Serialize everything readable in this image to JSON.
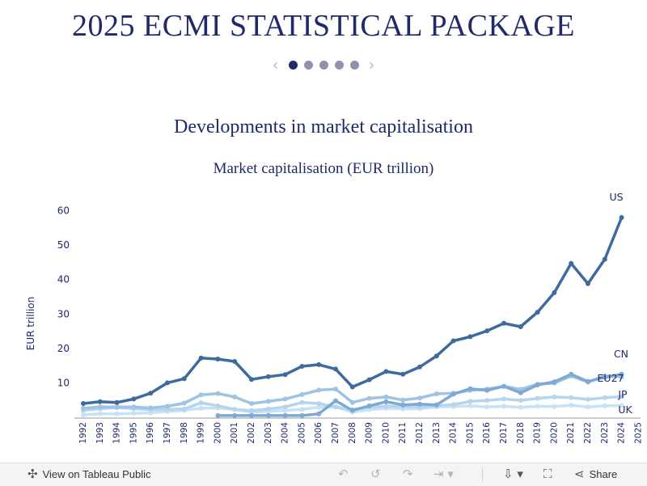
{
  "page": {
    "title": "2025 ECMI STATISTICAL PACKAGE",
    "subtitle": "Developments in market capitalisation"
  },
  "pager": {
    "prev_icon": "chevron-left-icon",
    "next_icon": "chevron-right-icon",
    "dots": 5,
    "active": 0
  },
  "toolbar": {
    "view_label": "View on Tableau Public",
    "share_label": "Share",
    "icons": [
      "tableau-logo-icon",
      "undo-icon",
      "revert-icon",
      "redo-icon",
      "download-icon",
      "fullscreen-icon",
      "share-icon"
    ]
  },
  "chart_data": {
    "type": "line",
    "title": "Market capitalisation (EUR trillion)",
    "ylabel": "EUR trillion",
    "xlabel": "",
    "ylim": [
      0,
      62
    ],
    "yticks": [
      10,
      20,
      30,
      40,
      50,
      60
    ],
    "x": [
      "1992",
      "1993",
      "1994",
      "1995",
      "1996",
      "1997",
      "1998",
      "1999",
      "2000",
      "2001",
      "2002",
      "2003",
      "2004",
      "2005",
      "2006",
      "2007",
      "2008",
      "2009",
      "2010",
      "2011",
      "2012",
      "2013",
      "2014",
      "2015",
      "2016",
      "2017",
      "2018",
      "2019",
      "2020",
      "2021",
      "2022",
      "2023",
      "2024",
      "2025"
    ],
    "grid": false,
    "legend": "inline labels at line ends",
    "series": [
      {
        "name": "US",
        "color": "#3e6b9e",
        "values": [
          4.0,
          4.5,
          4.3,
          5.3,
          7.0,
          10.0,
          11.2,
          17.2,
          16.9,
          16.2,
          11.0,
          11.8,
          12.4,
          14.8,
          15.3,
          14.0,
          8.8,
          10.9,
          13.3,
          12.5,
          14.6,
          17.8,
          22.2,
          23.4,
          25.1,
          27.3,
          26.3,
          30.5,
          36.2,
          44.7,
          38.8,
          45.9,
          58.0,
          null
        ]
      },
      {
        "name": "CN",
        "color": "#7ea9d2",
        "values": [
          null,
          null,
          null,
          null,
          null,
          null,
          null,
          null,
          0.5,
          0.5,
          0.5,
          0.5,
          0.5,
          0.5,
          1.0,
          4.8,
          2.0,
          3.3,
          4.5,
          3.6,
          3.8,
          3.6,
          6.7,
          8.3,
          7.8,
          9.0,
          7.1,
          9.4,
          10.3,
          12.5,
          10.4,
          11.6,
          12.5,
          null
        ]
      },
      {
        "name": "EU27",
        "color": "#9ec3e3",
        "values": [
          2.6,
          3.0,
          3.0,
          3.0,
          2.7,
          3.2,
          4.1,
          6.5,
          6.9,
          5.9,
          4.0,
          4.6,
          5.3,
          6.6,
          7.9,
          8.2,
          4.3,
          5.5,
          5.9,
          5.0,
          5.6,
          6.8,
          7.0,
          7.8,
          8.2,
          9.0,
          8.1,
          9.6,
          9.9,
          12.0,
          10.2,
          12.0,
          11.7,
          null
        ]
      },
      {
        "name": "JP",
        "color": "#b5d4ee",
        "values": [
          2.0,
          2.5,
          2.8,
          2.5,
          2.2,
          2.3,
          2.4,
          4.2,
          3.3,
          2.3,
          1.9,
          2.4,
          3.0,
          4.3,
          4.0,
          3.0,
          2.2,
          3.0,
          3.2,
          3.1,
          3.0,
          3.3,
          3.7,
          4.6,
          4.9,
          5.3,
          4.9,
          5.5,
          5.9,
          5.7,
          5.2,
          5.7,
          6.0,
          null
        ]
      },
      {
        "name": "UK",
        "color": "#c9e1f4",
        "values": [
          0.7,
          1.0,
          1.0,
          1.1,
          1.3,
          1.7,
          2.0,
          2.6,
          2.7,
          2.3,
          1.5,
          1.7,
          2.0,
          2.3,
          2.9,
          3.0,
          1.5,
          2.2,
          2.6,
          2.4,
          2.5,
          3.0,
          3.1,
          3.3,
          3.0,
          3.2,
          2.9,
          3.2,
          3.1,
          3.5,
          3.0,
          3.3,
          3.4,
          null
        ]
      }
    ]
  }
}
